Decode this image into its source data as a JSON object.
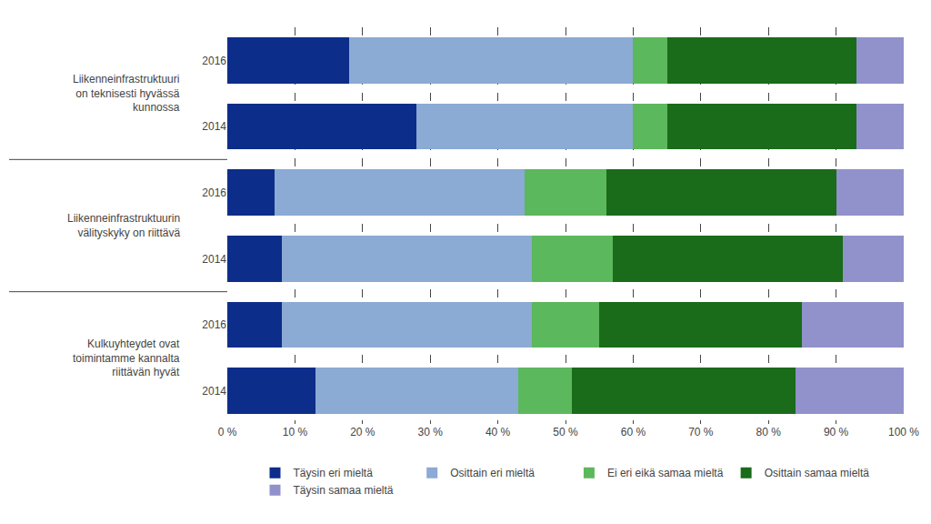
{
  "chart_data": {
    "type": "bar",
    "orientation": "horizontal",
    "stacked": true,
    "categories": [
      "2016",
      "2014",
      "2016",
      "2014",
      "2016",
      "2014"
    ],
    "groups": [
      {
        "label": "Liikenneinfrastruktuuri\non teknisesti hyvässä\nkunnossa",
        "categories": [
          "2016",
          "2014"
        ]
      },
      {
        "label": "Liikenneinfrastruktuurin\nvälityskyky on riittävä",
        "categories": [
          "2016",
          "2014"
        ]
      },
      {
        "label": "Kulkuyhteydet ovat\ntoimintamme kannalta\nriittävän hyvät",
        "categories": [
          "2016",
          "2014"
        ]
      }
    ],
    "series": [
      {
        "name": "Täysin eri mieltä",
        "color": "#0d2d8a",
        "values": [
          18,
          28,
          7,
          8,
          8,
          13
        ]
      },
      {
        "name": "Osittain eri mieltä",
        "color": "#8baad4",
        "values": [
          42,
          32,
          37,
          37,
          37,
          30
        ]
      },
      {
        "name": "Ei eri eikä samaa mieltä",
        "color": "#5cb85c",
        "values": [
          5,
          5,
          12,
          12,
          10,
          8
        ]
      },
      {
        "name": "Osittain samaa mieltä",
        "color": "#1a6b1a",
        "values": [
          28,
          28,
          34,
          34,
          30,
          33
        ]
      },
      {
        "name": "Täysin samaa mieltä",
        "color": "#9191cc",
        "values": [
          7,
          7,
          10,
          9,
          15,
          16
        ]
      }
    ],
    "xlim": [
      0,
      100
    ],
    "xticks": [
      {
        "value": 0,
        "label": "0 %"
      },
      {
        "value": 10,
        "label": "10 %"
      },
      {
        "value": 20,
        "label": "20 %"
      },
      {
        "value": 30,
        "label": "30 %"
      },
      {
        "value": 40,
        "label": "40 %"
      },
      {
        "value": 50,
        "label": "50 %"
      },
      {
        "value": 60,
        "label": "60 %"
      },
      {
        "value": 70,
        "label": "70 %"
      },
      {
        "value": 80,
        "label": "80 %"
      },
      {
        "value": 90,
        "label": "90 %"
      },
      {
        "value": 100,
        "label": "100 %"
      }
    ],
    "grid": true,
    "legend": "bottom"
  }
}
